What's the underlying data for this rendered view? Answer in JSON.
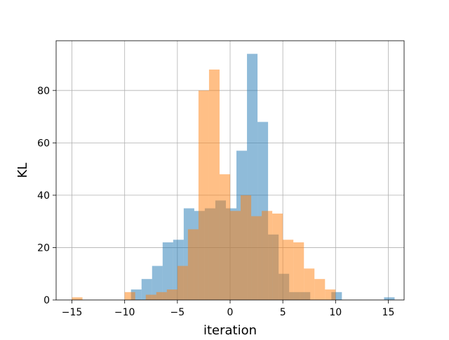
{
  "chart_data": {
    "type": "bar",
    "title": "",
    "xlabel": "iteration",
    "ylabel": "KL",
    "xlim": [
      -16.5,
      16.5
    ],
    "ylim": [
      0,
      99
    ],
    "xticks": [
      -15,
      -10,
      -5,
      0,
      5,
      10,
      15
    ],
    "xtick_labels": [
      "−15",
      "−10",
      "−5",
      "0",
      "5",
      "10",
      "15"
    ],
    "yticks": [
      0,
      20,
      40,
      60,
      80
    ],
    "ytick_labels": [
      "0",
      "20",
      "40",
      "60",
      "80"
    ],
    "grid": true,
    "legend": "none",
    "series": [
      {
        "color": "#1f77b4",
        "opacity": 0.5,
        "bins": [
          {
            "x0": -9.4,
            "x1": -8.4,
            "count": 4
          },
          {
            "x0": -8.4,
            "x1": -7.4,
            "count": 8
          },
          {
            "x0": -7.4,
            "x1": -6.4,
            "count": 13
          },
          {
            "x0": -6.4,
            "x1": -5.4,
            "count": 22
          },
          {
            "x0": -5.4,
            "x1": -4.4,
            "count": 23
          },
          {
            "x0": -4.4,
            "x1": -3.4,
            "count": 35
          },
          {
            "x0": -3.4,
            "x1": -2.4,
            "count": 34
          },
          {
            "x0": -2.4,
            "x1": -1.4,
            "count": 35
          },
          {
            "x0": -1.4,
            "x1": -0.4,
            "count": 38
          },
          {
            "x0": -0.4,
            "x1": 0.6,
            "count": 35
          },
          {
            "x0": 0.6,
            "x1": 1.6,
            "count": 57
          },
          {
            "x0": 1.6,
            "x1": 2.6,
            "count": 94
          },
          {
            "x0": 2.6,
            "x1": 3.6,
            "count": 68
          },
          {
            "x0": 3.6,
            "x1": 4.6,
            "count": 25
          },
          {
            "x0": 4.6,
            "x1": 5.6,
            "count": 10
          },
          {
            "x0": 5.6,
            "x1": 6.6,
            "count": 3
          },
          {
            "x0": 6.6,
            "x1": 7.6,
            "count": 3
          },
          {
            "x0": 7.6,
            "x1": 8.6,
            "count": 0
          },
          {
            "x0": 8.6,
            "x1": 9.6,
            "count": 0
          },
          {
            "x0": 9.6,
            "x1": 10.6,
            "count": 3
          },
          {
            "x0": 14.6,
            "x1": 15.6,
            "count": 1
          }
        ]
      },
      {
        "color": "#ff7f0e",
        "opacity": 0.5,
        "bins": [
          {
            "x0": -15.0,
            "x1": -14.0,
            "count": 1
          },
          {
            "x0": -10.0,
            "x1": -9.0,
            "count": 3
          },
          {
            "x0": -8.0,
            "x1": -7.0,
            "count": 2
          },
          {
            "x0": -7.0,
            "x1": -6.0,
            "count": 3
          },
          {
            "x0": -6.0,
            "x1": -5.0,
            "count": 4
          },
          {
            "x0": -5.0,
            "x1": -4.0,
            "count": 13
          },
          {
            "x0": -4.0,
            "x1": -3.0,
            "count": 27
          },
          {
            "x0": -3.0,
            "x1": -2.0,
            "count": 80
          },
          {
            "x0": -2.0,
            "x1": -1.0,
            "count": 88
          },
          {
            "x0": -1.0,
            "x1": 0.0,
            "count": 48
          },
          {
            "x0": 0.0,
            "x1": 1.0,
            "count": 34
          },
          {
            "x0": 1.0,
            "x1": 2.0,
            "count": 40
          },
          {
            "x0": 2.0,
            "x1": 3.0,
            "count": 32
          },
          {
            "x0": 3.0,
            "x1": 4.0,
            "count": 34
          },
          {
            "x0": 4.0,
            "x1": 5.0,
            "count": 33
          },
          {
            "x0": 5.0,
            "x1": 6.0,
            "count": 23
          },
          {
            "x0": 6.0,
            "x1": 7.0,
            "count": 22
          },
          {
            "x0": 7.0,
            "x1": 8.0,
            "count": 12
          },
          {
            "x0": 8.0,
            "x1": 9.0,
            "count": 8
          },
          {
            "x0": 9.0,
            "x1": 10.0,
            "count": 4
          }
        ]
      }
    ]
  }
}
